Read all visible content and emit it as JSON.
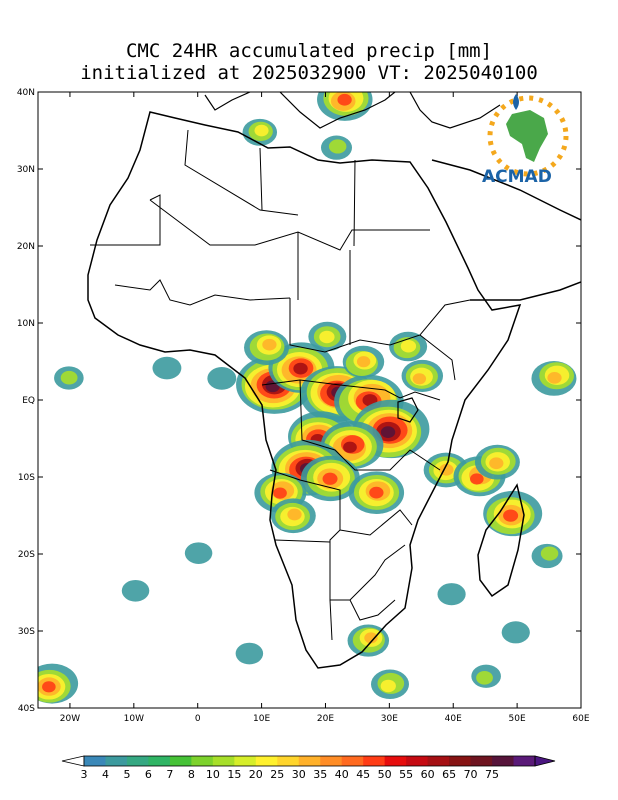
{
  "title": {
    "line1": "CMC 24HR accumulated precip [mm]",
    "line2": "initialized at 2025032900 VT: 2025040100"
  },
  "logo": {
    "text": "ACMAD",
    "icon": "africa-sun-logo-icon"
  },
  "map": {
    "lon_range": [
      -25,
      60
    ],
    "lat_range": [
      -40,
      40
    ],
    "lat_labels": [
      "40N",
      "30N",
      "20N",
      "10N",
      "EQ",
      "10S",
      "20S",
      "30S",
      "40S"
    ],
    "lon_labels": [
      "20W",
      "10W",
      "0",
      "10E",
      "20E",
      "30E",
      "40E",
      "50E",
      "60E"
    ],
    "lat_ticks": [
      40,
      30,
      20,
      10,
      0,
      -10,
      -20,
      -30,
      -40
    ],
    "lon_ticks": [
      -20,
      -10,
      0,
      10,
      20,
      30,
      40,
      50,
      60
    ]
  },
  "colorbar": {
    "labels": [
      "3",
      "4",
      "5",
      "6",
      "7",
      "8",
      "10",
      "15",
      "20",
      "25",
      "30",
      "35",
      "40",
      "45",
      "50",
      "55",
      "60",
      "65",
      "70",
      "75"
    ],
    "colors": [
      "#3a88b8",
      "#3c9a9e",
      "#35a882",
      "#2fb464",
      "#46c236",
      "#7dd22c",
      "#a7df2a",
      "#d6ee2a",
      "#fff12e",
      "#ffd52c",
      "#ffb12a",
      "#ff8d26",
      "#ff6a20",
      "#ff3d16",
      "#e60d0d",
      "#c50a12",
      "#a51013",
      "#861313",
      "#6e1420",
      "#56143a",
      "#5a1a78"
    ]
  },
  "precip_blobs": [
    {
      "lon": 12,
      "lat": 2,
      "mm": 75
    },
    {
      "lon": 16,
      "lat": 4,
      "mm": 60
    },
    {
      "lon": 22,
      "lat": 1,
      "mm": 70
    },
    {
      "lon": 27,
      "lat": 0,
      "mm": 65
    },
    {
      "lon": 30,
      "lat": -4,
      "mm": 75
    },
    {
      "lon": 19,
      "lat": -5,
      "mm": 60
    },
    {
      "lon": 24,
      "lat": -6,
      "mm": 55
    },
    {
      "lon": 17,
      "lat": -9,
      "mm": 70
    },
    {
      "lon": 21,
      "lat": -10,
      "mm": 50
    },
    {
      "lon": 13,
      "lat": -12,
      "mm": 40
    },
    {
      "lon": 28,
      "lat": -12,
      "mm": 45
    },
    {
      "lon": 15,
      "lat": -15,
      "mm": 30
    },
    {
      "lon": 11,
      "lat": 7,
      "mm": 30
    },
    {
      "lon": 20,
      "lat": 8,
      "mm": 20
    },
    {
      "lon": 35,
      "lat": 3,
      "mm": 25
    },
    {
      "lon": 39,
      "lat": -9,
      "mm": 30
    },
    {
      "lon": 44,
      "lat": -10,
      "mm": 40
    },
    {
      "lon": 47,
      "lat": -8,
      "mm": 30
    },
    {
      "lon": 49,
      "lat": -15,
      "mm": 50
    },
    {
      "lon": 56,
      "lat": 3,
      "mm": 30
    },
    {
      "lon": 27,
      "lat": -31,
      "mm": 25
    },
    {
      "lon": 30,
      "lat": -37,
      "mm": 20
    },
    {
      "lon": -23,
      "lat": -37,
      "mm": 40
    },
    {
      "lon": 23,
      "lat": 39,
      "mm": 45
    },
    {
      "lon": 10,
      "lat": 35,
      "mm": 15
    },
    {
      "lon": 22,
      "lat": 33,
      "mm": 10
    },
    {
      "lon": -20,
      "lat": 3,
      "mm": 8
    },
    {
      "lon": -5,
      "lat": 4,
      "mm": 7
    },
    {
      "lon": 4,
      "lat": 3,
      "mm": 7
    },
    {
      "lon": 50,
      "lat": -30,
      "mm": 6
    },
    {
      "lon": 55,
      "lat": -20,
      "mm": 10
    },
    {
      "lon": 40,
      "lat": -25,
      "mm": 6
    },
    {
      "lon": 33,
      "lat": 7,
      "mm": 20
    },
    {
      "lon": 26,
      "lat": 5,
      "mm": 25
    },
    {
      "lon": 45,
      "lat": -36,
      "mm": 8
    },
    {
      "lon": -10,
      "lat": -25,
      "mm": 5
    },
    {
      "lon": 0,
      "lat": -20,
      "mm": 5
    },
    {
      "lon": 8,
      "lat": -33,
      "mm": 5
    }
  ]
}
